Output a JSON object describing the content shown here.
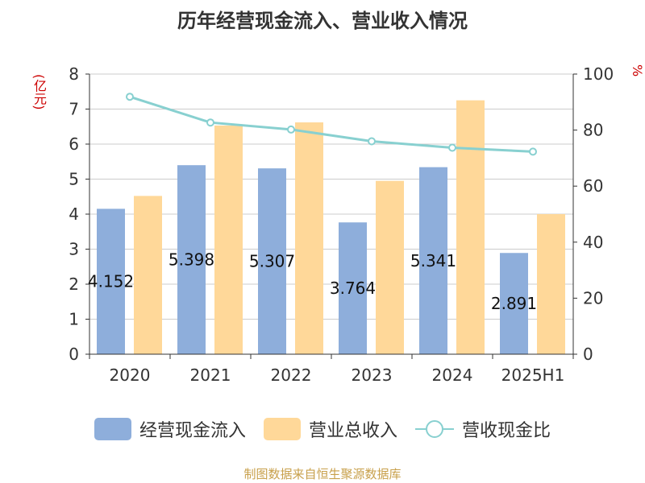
{
  "chart_data": {
    "type": "bar",
    "title": "历年经营现金流入、营业收入情况",
    "categories": [
      "2020",
      "2021",
      "2022",
      "2023",
      "2024",
      "2025H1"
    ],
    "ylabel": "(亿元)",
    "ylabel_right": "%",
    "ylim": [
      0,
      8
    ],
    "ylim_right": [
      0,
      100
    ],
    "yticks_left": [
      "0",
      "1",
      "2",
      "3",
      "4",
      "5",
      "6",
      "7",
      "8"
    ],
    "yticks_right": [
      "0",
      "20",
      "40",
      "60",
      "80",
      "100"
    ],
    "grid": true,
    "legend_position": "bottom",
    "series": [
      {
        "name": "经营现金流入",
        "type": "bar",
        "axis": "left",
        "color": "#8eaedb",
        "values": [
          4.152,
          5.398,
          5.307,
          3.764,
          5.341,
          2.891
        ],
        "labels": [
          "4.152",
          "5.398",
          "5.307",
          "3.764",
          "5.341",
          "2.891"
        ]
      },
      {
        "name": "营业总收入",
        "type": "bar",
        "axis": "left",
        "color": "#ffd899",
        "values": [
          4.52,
          6.53,
          6.62,
          4.95,
          7.25,
          4.0
        ]
      },
      {
        "name": "营收现金比",
        "type": "line",
        "axis": "right",
        "color": "#88d0d0",
        "values": [
          91.9,
          82.7,
          80.2,
          76.0,
          73.7,
          72.3
        ]
      }
    ]
  },
  "source": "制图数据来自恒生聚源数据库"
}
